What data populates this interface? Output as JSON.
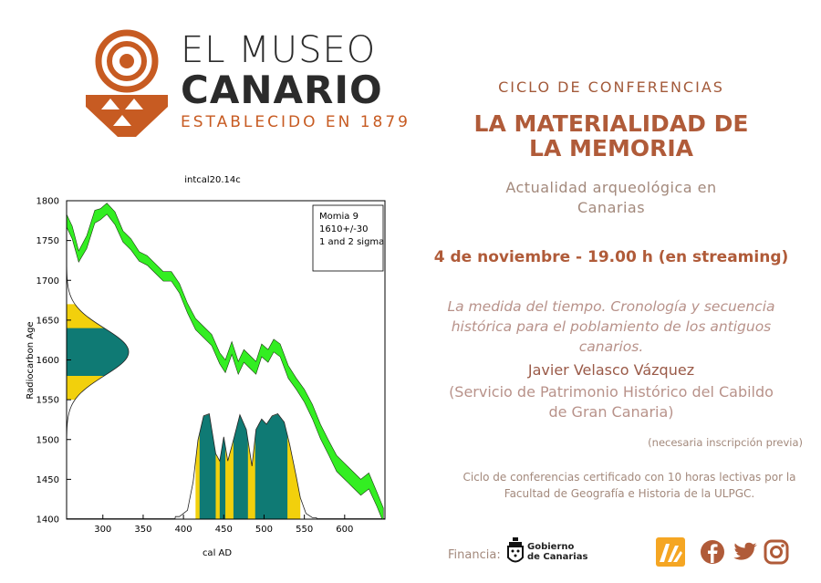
{
  "logo": {
    "line1": "EL MUSEO",
    "line2": "CANARIO",
    "line3": "ESTABLECIDO EN 1879",
    "brand_color": "#c75b22"
  },
  "event": {
    "series_title": "CICLO DE CONFERENCIAS",
    "title_line1": "LA MATERIALIDAD DE",
    "title_line2": "LA MEMORIA",
    "subtitle_line1": "Actualidad arqueológica en",
    "subtitle_line2": "Canarias",
    "date": "4 de noviembre - 19.00 h (en streaming)",
    "abstract_line1": "La medida del tiempo. Cronología y secuencia",
    "abstract_line2": "histórica para el poblamiento de los antiguos",
    "abstract_line3": "canarios.",
    "speaker": "Javier Velasco Vázquez",
    "affiliation_line1": "(Servicio de Patrimonio Histórico del Cabildo",
    "affiliation_line2": "de Gran Canaria)",
    "registration": "(necesaria inscripción previa)",
    "certificate_line1": "Ciclo de conferencias certificado con 10 horas lectivas por la",
    "certificate_line2": "Facultad de Geografía e Historia de la ULPGC.",
    "accent_color": "#b05b39"
  },
  "footer": {
    "funding_label": "Financia:",
    "funder_line1": "Gobierno",
    "funder_line2": "de Canarias",
    "icons": [
      "museum-logo-icon",
      "facebook-icon",
      "twitter-icon",
      "instagram-icon"
    ]
  },
  "chart_data": {
    "type": "area",
    "title": "intcal20.14c",
    "xlabel": "cal AD",
    "ylabel": "Radiocarbon Age",
    "xlim": [
      255,
      650
    ],
    "ylim": [
      1400,
      1800
    ],
    "x_ticks": [
      300,
      350,
      400,
      450,
      500,
      550,
      600
    ],
    "y_ticks": [
      1400,
      1450,
      1500,
      1550,
      1600,
      1650,
      1700,
      1750,
      1800
    ],
    "legend": [
      "Momia 9",
      "1610+/-30",
      "1 and 2 sigma"
    ],
    "legend_position": "top-right",
    "calibration_curve": {
      "color": "#33ee22",
      "x": [
        255,
        262,
        270,
        280,
        290,
        297,
        305,
        315,
        325,
        335,
        345,
        355,
        365,
        375,
        385,
        395,
        405,
        415,
        425,
        435,
        445,
        452,
        460,
        468,
        475,
        482,
        490,
        497,
        505,
        512,
        520,
        530,
        540,
        550,
        560,
        570,
        580,
        590,
        600,
        610,
        620,
        630,
        640,
        648
      ],
      "y": [
        1775,
        1760,
        1730,
        1748,
        1780,
        1783,
        1790,
        1778,
        1755,
        1745,
        1730,
        1725,
        1715,
        1705,
        1705,
        1690,
        1665,
        1645,
        1635,
        1625,
        1602,
        1592,
        1615,
        1590,
        1605,
        1598,
        1590,
        1612,
        1605,
        1618,
        1612,
        1585,
        1570,
        1555,
        1535,
        1510,
        1490,
        1470,
        1460,
        1450,
        1440,
        1448,
        1425,
        1405
      ],
      "band_halfwidth": [
        8,
        8,
        7,
        8,
        8,
        7,
        7,
        8,
        7,
        7,
        6,
        6,
        6,
        6,
        6,
        6,
        6,
        7,
        7,
        7,
        7,
        8,
        8,
        8,
        8,
        8,
        8,
        8,
        8,
        8,
        8,
        8,
        7,
        8,
        9,
        9,
        9,
        10,
        10,
        10,
        10,
        10,
        9,
        9
      ]
    },
    "measurement": {
      "mean": 1610,
      "sigma": 30,
      "one_sigma_color": "#0f7a74",
      "two_sigma_color": "#f2d00c"
    },
    "calibrated_ranges": {
      "two_sigma": [
        [
          415,
          545
        ]
      ],
      "one_sigma": [
        [
          420,
          440
        ],
        [
          445,
          452
        ],
        [
          462,
          480
        ],
        [
          489,
          529
        ]
      ],
      "density_x": [
        395,
        405,
        412,
        418,
        425,
        432,
        440,
        445,
        450,
        455,
        462,
        470,
        478,
        485,
        490,
        497,
        503,
        510,
        517,
        525,
        532,
        540,
        545,
        552,
        560
      ],
      "density_y": [
        0.02,
        0.08,
        0.35,
        0.75,
        0.98,
        1.0,
        0.62,
        0.55,
        0.78,
        0.55,
        0.75,
        0.99,
        0.85,
        0.5,
        0.85,
        0.95,
        0.9,
        0.98,
        1.0,
        0.92,
        0.7,
        0.4,
        0.2,
        0.05,
        0.01
      ]
    }
  }
}
